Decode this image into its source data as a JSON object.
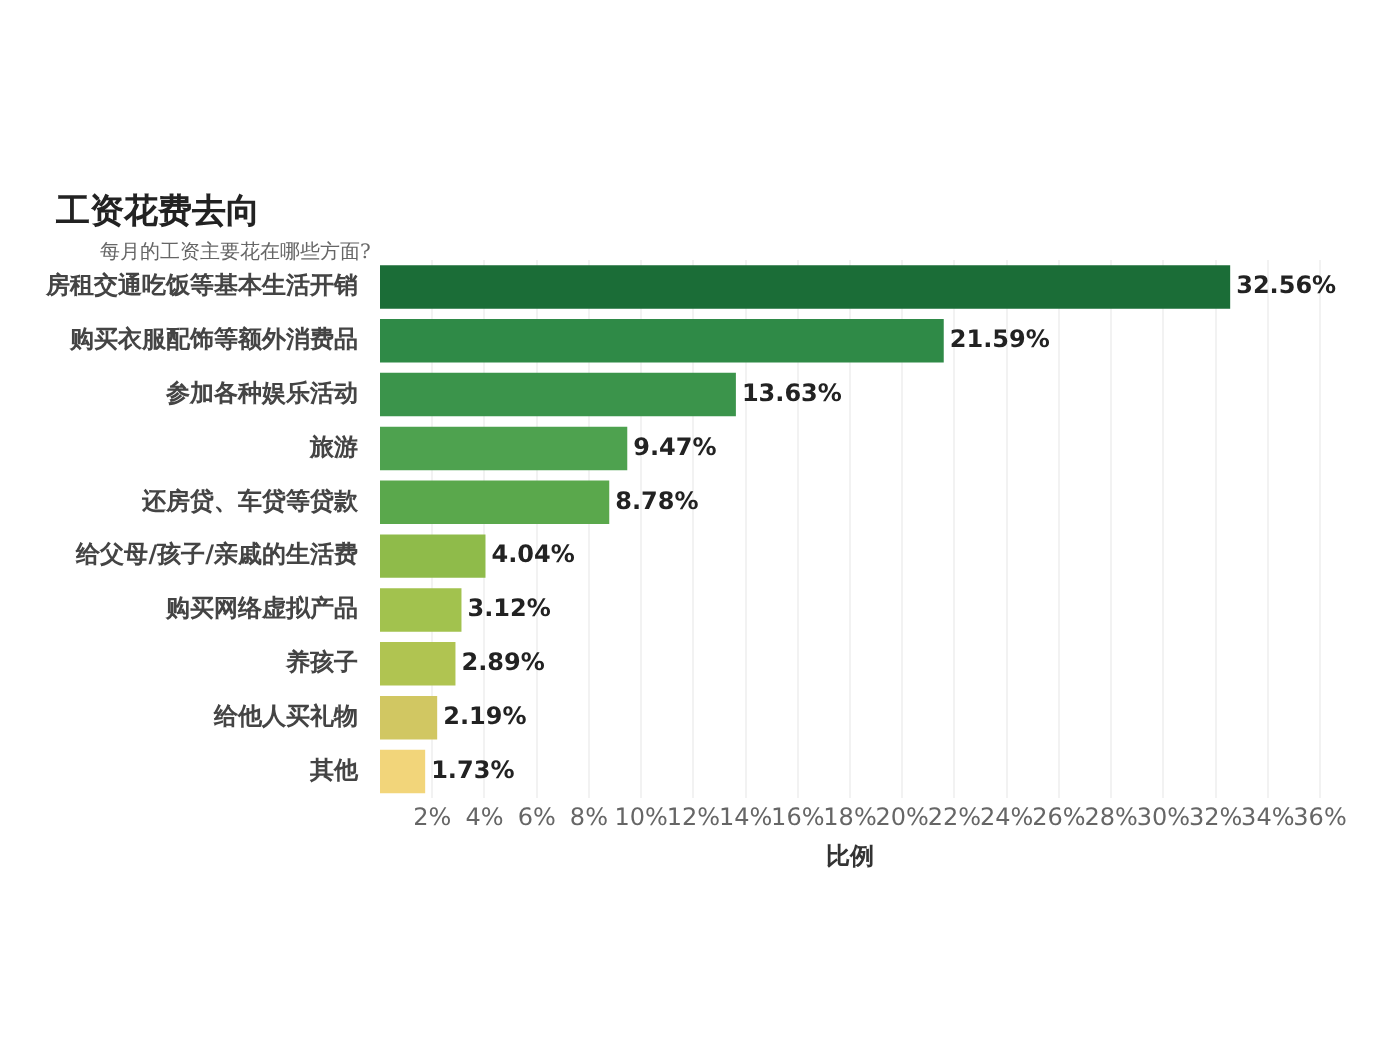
{
  "chart_data": {
    "type": "bar",
    "orientation": "horizontal",
    "title": "工资花费去向",
    "subtitle": "每月的工资主要花在哪些方面?",
    "xlabel": "比例",
    "categories": [
      "房租交通吃饭等基本生活开销",
      "购买衣服配饰等额外消费品",
      "参加各种娱乐活动",
      "旅游",
      "还房贷、车贷等贷款",
      "给父母/孩子/亲戚的生活费",
      "购买网络虚拟产品",
      "养孩子",
      "给他人买礼物",
      "其他"
    ],
    "values": [
      32.56,
      21.59,
      13.63,
      9.47,
      8.78,
      4.04,
      3.12,
      2.89,
      2.19,
      1.73
    ],
    "value_labels": [
      "32.56%",
      "21.59%",
      "13.63%",
      "9.47%",
      "8.78%",
      "4.04%",
      "3.12%",
      "2.89%",
      "2.19%",
      "1.73%"
    ],
    "colors": [
      "#1b6d37",
      "#2f8a47",
      "#3b944b",
      "#4ea24f",
      "#5aa84c",
      "#8fbb4a",
      "#a2c24e",
      "#b0c451",
      "#d1c762",
      "#f2d57a"
    ],
    "xlim": [
      0,
      36
    ],
    "xticks": [
      {
        "value": 2,
        "label": "2%"
      },
      {
        "value": 4,
        "label": "4%"
      },
      {
        "value": 6,
        "label": "6%"
      },
      {
        "value": 8,
        "label": "8%"
      },
      {
        "value": 10,
        "label": "10%"
      },
      {
        "value": 12,
        "label": "12%"
      },
      {
        "value": 14,
        "label": "14%"
      },
      {
        "value": 16,
        "label": "16%"
      },
      {
        "value": 18,
        "label": "18%"
      },
      {
        "value": 20,
        "label": "20%"
      },
      {
        "value": 22,
        "label": "22%"
      },
      {
        "value": 24,
        "label": "24%"
      },
      {
        "value": 26,
        "label": "26%"
      },
      {
        "value": 28,
        "label": "28%"
      },
      {
        "value": 30,
        "label": "30%"
      },
      {
        "value": 32,
        "label": "32%"
      },
      {
        "value": 34,
        "label": "34%"
      },
      {
        "value": 36,
        "label": "36%"
      }
    ],
    "grid": "x",
    "legend": false
  }
}
